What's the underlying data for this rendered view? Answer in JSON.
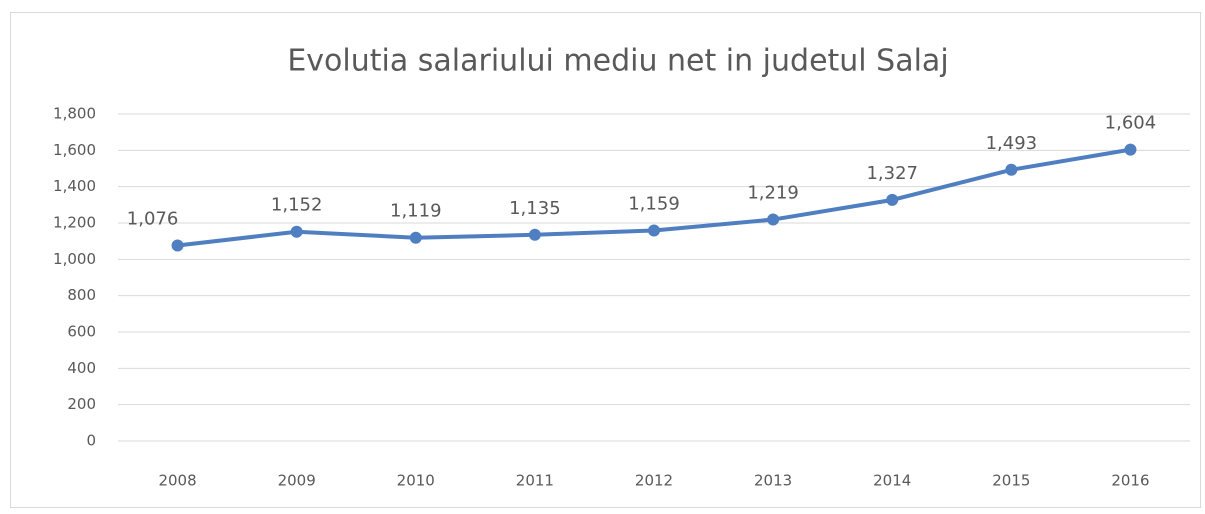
{
  "chart_data": {
    "type": "line",
    "title": "Evolutia salariului mediu net in judetul Salaj",
    "categories": [
      "2008",
      "2009",
      "2010",
      "2011",
      "2012",
      "2013",
      "2014",
      "2015",
      "2016"
    ],
    "values": [
      1076,
      1152,
      1119,
      1135,
      1159,
      1219,
      1327,
      1493,
      1604
    ],
    "value_labels": [
      "1,076",
      "1,152",
      "1,119",
      "1,135",
      "1,159",
      "1,219",
      "1,327",
      "1,493",
      "1,604"
    ],
    "color": "#4f7fc0",
    "ylim": [
      0,
      1800
    ],
    "yticks": [
      0,
      200,
      400,
      600,
      800,
      {
        "value": 1000,
        "label": "1,000"
      },
      {
        "value": 1200,
        "label": "1,200"
      },
      {
        "value": 1400,
        "label": "1,400"
      },
      {
        "value": 1600,
        "label": "1,600"
      },
      {
        "value": 1800,
        "label": "1,800"
      }
    ],
    "grid": true
  }
}
